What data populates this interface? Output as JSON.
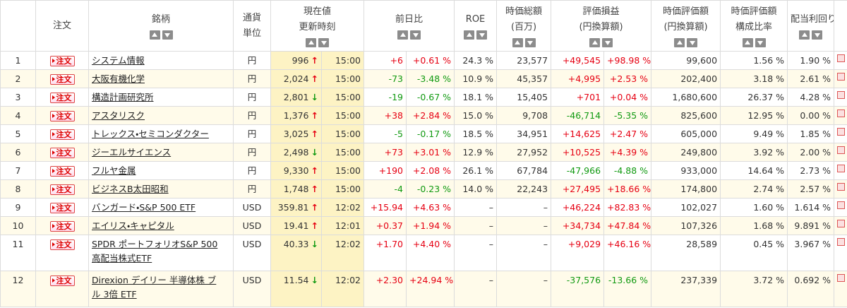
{
  "table": {
    "order_button": "注文",
    "headers": [
      {
        "lines": [
          "注文"
        ]
      },
      {
        "lines": [
          "銘柄"
        ],
        "sort": true
      },
      {
        "lines": [
          "通貨",
          "単位"
        ]
      },
      {
        "lines": [
          "現在値",
          "更新時刻"
        ],
        "span": 2,
        "sort": true
      },
      {
        "lines": [
          "前日比"
        ],
        "span": 2,
        "sort": true
      },
      {
        "lines": [
          "ROE"
        ],
        "sort": true
      },
      {
        "lines": [
          "時価総額",
          "(百万)"
        ],
        "sort": true
      },
      {
        "lines": [
          "評価損益",
          "(円換算額)"
        ],
        "span": 2,
        "sort": true
      },
      {
        "lines": [
          "時価評価額",
          "(円換算額)"
        ],
        "sort": true
      },
      {
        "lines": [
          "時価評価額",
          "構成比率"
        ],
        "sort": true
      },
      {
        "lines": [
          "配当利回り"
        ],
        "sort": true
      }
    ],
    "rows": [
      {
        "no": "1",
        "name": "システム情報",
        "currency": "円",
        "price": "996",
        "arrow": "↑",
        "trend": "up",
        "time": "15:00",
        "change": "+6",
        "change_pct": "+0.61 %",
        "roe": "24.3 %",
        "mcap": "23,577",
        "pnl": "+49,545",
        "pnl_pct": "+98.98 %",
        "value": "99,600",
        "ratio": "1.56 %",
        "yield": "1.90 %"
      },
      {
        "no": "2",
        "name": "大阪有機化学",
        "currency": "円",
        "price": "2,024",
        "arrow": "↑",
        "trend": "up",
        "time": "15:00",
        "change": "-73",
        "change_pct": "-3.48 %",
        "roe": "10.9 %",
        "mcap": "45,357",
        "pnl": "+4,995",
        "pnl_pct": "+2.53 %",
        "value": "202,400",
        "ratio": "3.18 %",
        "yield": "2.61 %"
      },
      {
        "no": "3",
        "name": "構造計画研究所",
        "currency": "円",
        "price": "2,801",
        "arrow": "↓",
        "trend": "down",
        "time": "15:00",
        "change": "-19",
        "change_pct": "-0.67 %",
        "roe": "18.1 %",
        "mcap": "15,405",
        "pnl": "+701",
        "pnl_pct": "+0.04 %",
        "value": "1,680,600",
        "ratio": "26.37 %",
        "yield": "4.28 %"
      },
      {
        "no": "4",
        "name": "アスタリスク",
        "currency": "円",
        "price": "1,376",
        "arrow": "↑",
        "trend": "up",
        "time": "15:00",
        "change": "+38",
        "change_pct": "+2.84 %",
        "roe": "15.0 %",
        "mcap": "9,708",
        "pnl": "-46,714",
        "pnl_pct": "-5.35 %",
        "value": "825,600",
        "ratio": "12.95 %",
        "yield": "0.00 %"
      },
      {
        "no": "5",
        "name": "トレックス・セミコンダクター",
        "currency": "円",
        "price": "3,025",
        "arrow": "↑",
        "trend": "up",
        "time": "15:00",
        "change": "-5",
        "change_pct": "-0.17 %",
        "roe": "18.5 %",
        "mcap": "34,951",
        "pnl": "+14,625",
        "pnl_pct": "+2.47 %",
        "value": "605,000",
        "ratio": "9.49 %",
        "yield": "1.85 %"
      },
      {
        "no": "6",
        "name": "ジーエルサイエンス",
        "currency": "円",
        "price": "2,498",
        "arrow": "↓",
        "trend": "down",
        "time": "15:00",
        "change": "+73",
        "change_pct": "+3.01 %",
        "roe": "12.9 %",
        "mcap": "27,952",
        "pnl": "+10,525",
        "pnl_pct": "+4.39 %",
        "value": "249,800",
        "ratio": "3.92 %",
        "yield": "2.00 %"
      },
      {
        "no": "7",
        "name": "フルヤ金属",
        "currency": "円",
        "price": "9,330",
        "arrow": "↑",
        "trend": "up",
        "time": "15:00",
        "change": "+190",
        "change_pct": "+2.08 %",
        "roe": "26.1 %",
        "mcap": "67,784",
        "pnl": "-47,966",
        "pnl_pct": "-4.88 %",
        "value": "933,000",
        "ratio": "14.64 %",
        "yield": "2.73 %"
      },
      {
        "no": "8",
        "name": "ビジネスB太田昭和",
        "currency": "円",
        "price": "1,748",
        "arrow": "↑",
        "trend": "up",
        "time": "15:00",
        "change": "-4",
        "change_pct": "-0.23 %",
        "roe": "14.0 %",
        "mcap": "22,243",
        "pnl": "+27,495",
        "pnl_pct": "+18.66 %",
        "value": "174,800",
        "ratio": "2.74 %",
        "yield": "2.57 %"
      },
      {
        "no": "9",
        "name": "バンガード・S&P 500 ETF",
        "currency": "USD",
        "price": "359.81",
        "arrow": "↑",
        "trend": "up",
        "time": "12:02",
        "change": "+15.94",
        "change_pct": "+4.63 %",
        "roe": "–",
        "mcap": "–",
        "pnl": "+46,224",
        "pnl_pct": "+82.83 %",
        "value": "102,027",
        "ratio": "1.60 %",
        "yield": "1.614 %"
      },
      {
        "no": "10",
        "name": "エイリス・キャピタル",
        "currency": "USD",
        "price": "19.41",
        "arrow": "↑",
        "trend": "up",
        "time": "12:01",
        "change": "+0.37",
        "change_pct": "+1.94 %",
        "roe": "–",
        "mcap": "–",
        "pnl": "+34,734",
        "pnl_pct": "+47.84 %",
        "value": "107,326",
        "ratio": "1.68 %",
        "yield": "9.891 %"
      },
      {
        "no": "11",
        "name": "SPDR ポートフォリオS&P 500\n高配当株式ETF",
        "currency": "USD",
        "price": "40.33",
        "arrow": "↓",
        "trend": "down",
        "time": "12:02",
        "change": "+1.70",
        "change_pct": "+4.40 %",
        "roe": "–",
        "mcap": "–",
        "pnl": "+9,029",
        "pnl_pct": "+46.16 %",
        "value": "28,589",
        "ratio": "0.45 %",
        "yield": "3.967 %"
      },
      {
        "no": "12",
        "name": "Direxion デイリー 半導体株 ブ\nル 3倍 ETF",
        "currency": "USD",
        "price": "11.54",
        "arrow": "↓",
        "trend": "down",
        "time": "12:02",
        "change": "+2.30",
        "change_pct": "+24.94 %",
        "roe": "–",
        "mcap": "–",
        "pnl": "-37,576",
        "pnl_pct": "-13.66 %",
        "value": "237,339",
        "ratio": "3.72 %",
        "yield": "0.692 %"
      }
    ]
  }
}
